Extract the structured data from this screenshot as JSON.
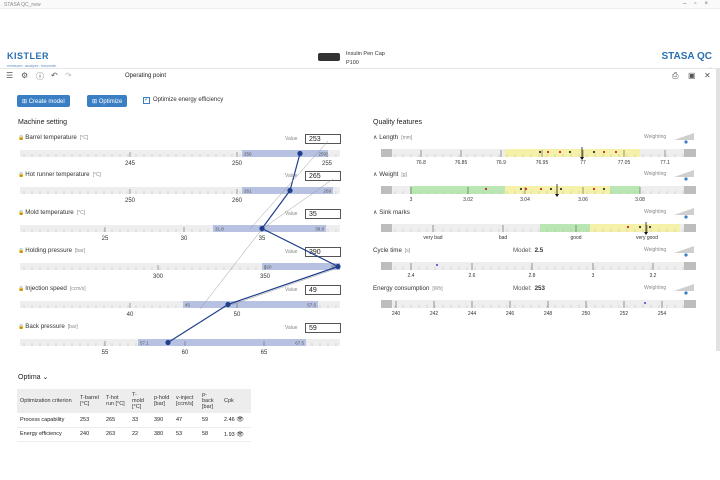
{
  "window": {
    "title": "STASA QC_new"
  },
  "header": {
    "brand_left": "KISTLER",
    "brand_left_sub": "measure. analyze. innovate.",
    "brand_right": "STASA QC",
    "brand_right_sub": "...",
    "part_name": "Insulin Pen Cap",
    "part_code": "P100"
  },
  "toolbar": {
    "title": "Operating point"
  },
  "actions": {
    "create_model": "Create model",
    "optimize": "Optimize",
    "optimize_energy": "Optimize energy efficiency",
    "optimize_energy_checked": true
  },
  "machine": {
    "title": "Machine setting",
    "value_label": "Value",
    "rows": [
      {
        "name": "Barrel temperature",
        "unit": "[°C]",
        "value": "253",
        "ticks": [
          "245",
          "250",
          "255"
        ],
        "range_lo": "250",
        "range_hi": "259"
      },
      {
        "name": "Hot runner temperature",
        "unit": "[°C]",
        "value": "265",
        "ticks": [
          "250",
          "260"
        ],
        "range_lo": "261",
        "range_hi": "269"
      },
      {
        "name": "Mold temperature",
        "unit": "[°C]",
        "value": "35",
        "ticks": [
          "25",
          "30",
          "35"
        ],
        "range_lo": "31.8",
        "range_hi": "38.8"
      },
      {
        "name": "Holding pressure",
        "unit": "[bar]",
        "value": "390",
        "ticks": [
          "300",
          "350"
        ],
        "range_lo": "320",
        "range_hi": "390"
      },
      {
        "name": "Injection speed",
        "unit": "[ccm/s]",
        "value": "49",
        "ticks": [
          "40",
          "50"
        ],
        "range_lo": "45",
        "range_hi": "57.5"
      },
      {
        "name": "Back pressure",
        "unit": "[bar]",
        "value": "59",
        "ticks": [
          "55",
          "60",
          "65"
        ],
        "range_lo": "57.1",
        "range_hi": "67.5"
      }
    ]
  },
  "quality": {
    "title": "Quality features",
    "weighting_label": "Weighting",
    "model_label": "Model:",
    "rows": [
      {
        "name": "Length",
        "unit": "[mm]",
        "ticks": [
          "76.8",
          "76.85",
          "76.9",
          "76.95",
          "77",
          "77.05",
          "77.1"
        ],
        "model": ""
      },
      {
        "name": "Weight",
        "unit": "[g]",
        "ticks": [
          "3",
          "3.02",
          "3.04",
          "3.06",
          "3.08"
        ],
        "model": ""
      },
      {
        "name": "Sink marks",
        "unit": "",
        "ticks": [
          "very bad",
          "bad",
          "good",
          "very good"
        ],
        "model": ""
      },
      {
        "name": "Cycle time",
        "unit": "[s]",
        "ticks": [
          "2.4",
          "2.6",
          "2.8",
          "3",
          "3.2"
        ],
        "model": "2.5"
      },
      {
        "name": "Energy consumption",
        "unit": "[Wh]",
        "ticks": [
          "240",
          "242",
          "244",
          "246",
          "248",
          "250",
          "252",
          "254"
        ],
        "model": "253"
      }
    ]
  },
  "optima": {
    "title": "Optima",
    "headers": [
      "Optimization criterion",
      "T-barrel [°C]",
      "T-hot run [°C]",
      "T-mold [°C]",
      "p-hold [bar]",
      "v-inject [ccm/s]",
      "p-back [bar]",
      "Cpk"
    ],
    "rows": [
      {
        "criterion": "Process capability",
        "values": [
          "253",
          "265",
          "33",
          "390",
          "47",
          "59",
          "2.46"
        ]
      },
      {
        "criterion": "Energy efficiency",
        "values": [
          "240",
          "263",
          "22",
          "380",
          "53",
          "58",
          "1.93"
        ]
      }
    ]
  }
}
